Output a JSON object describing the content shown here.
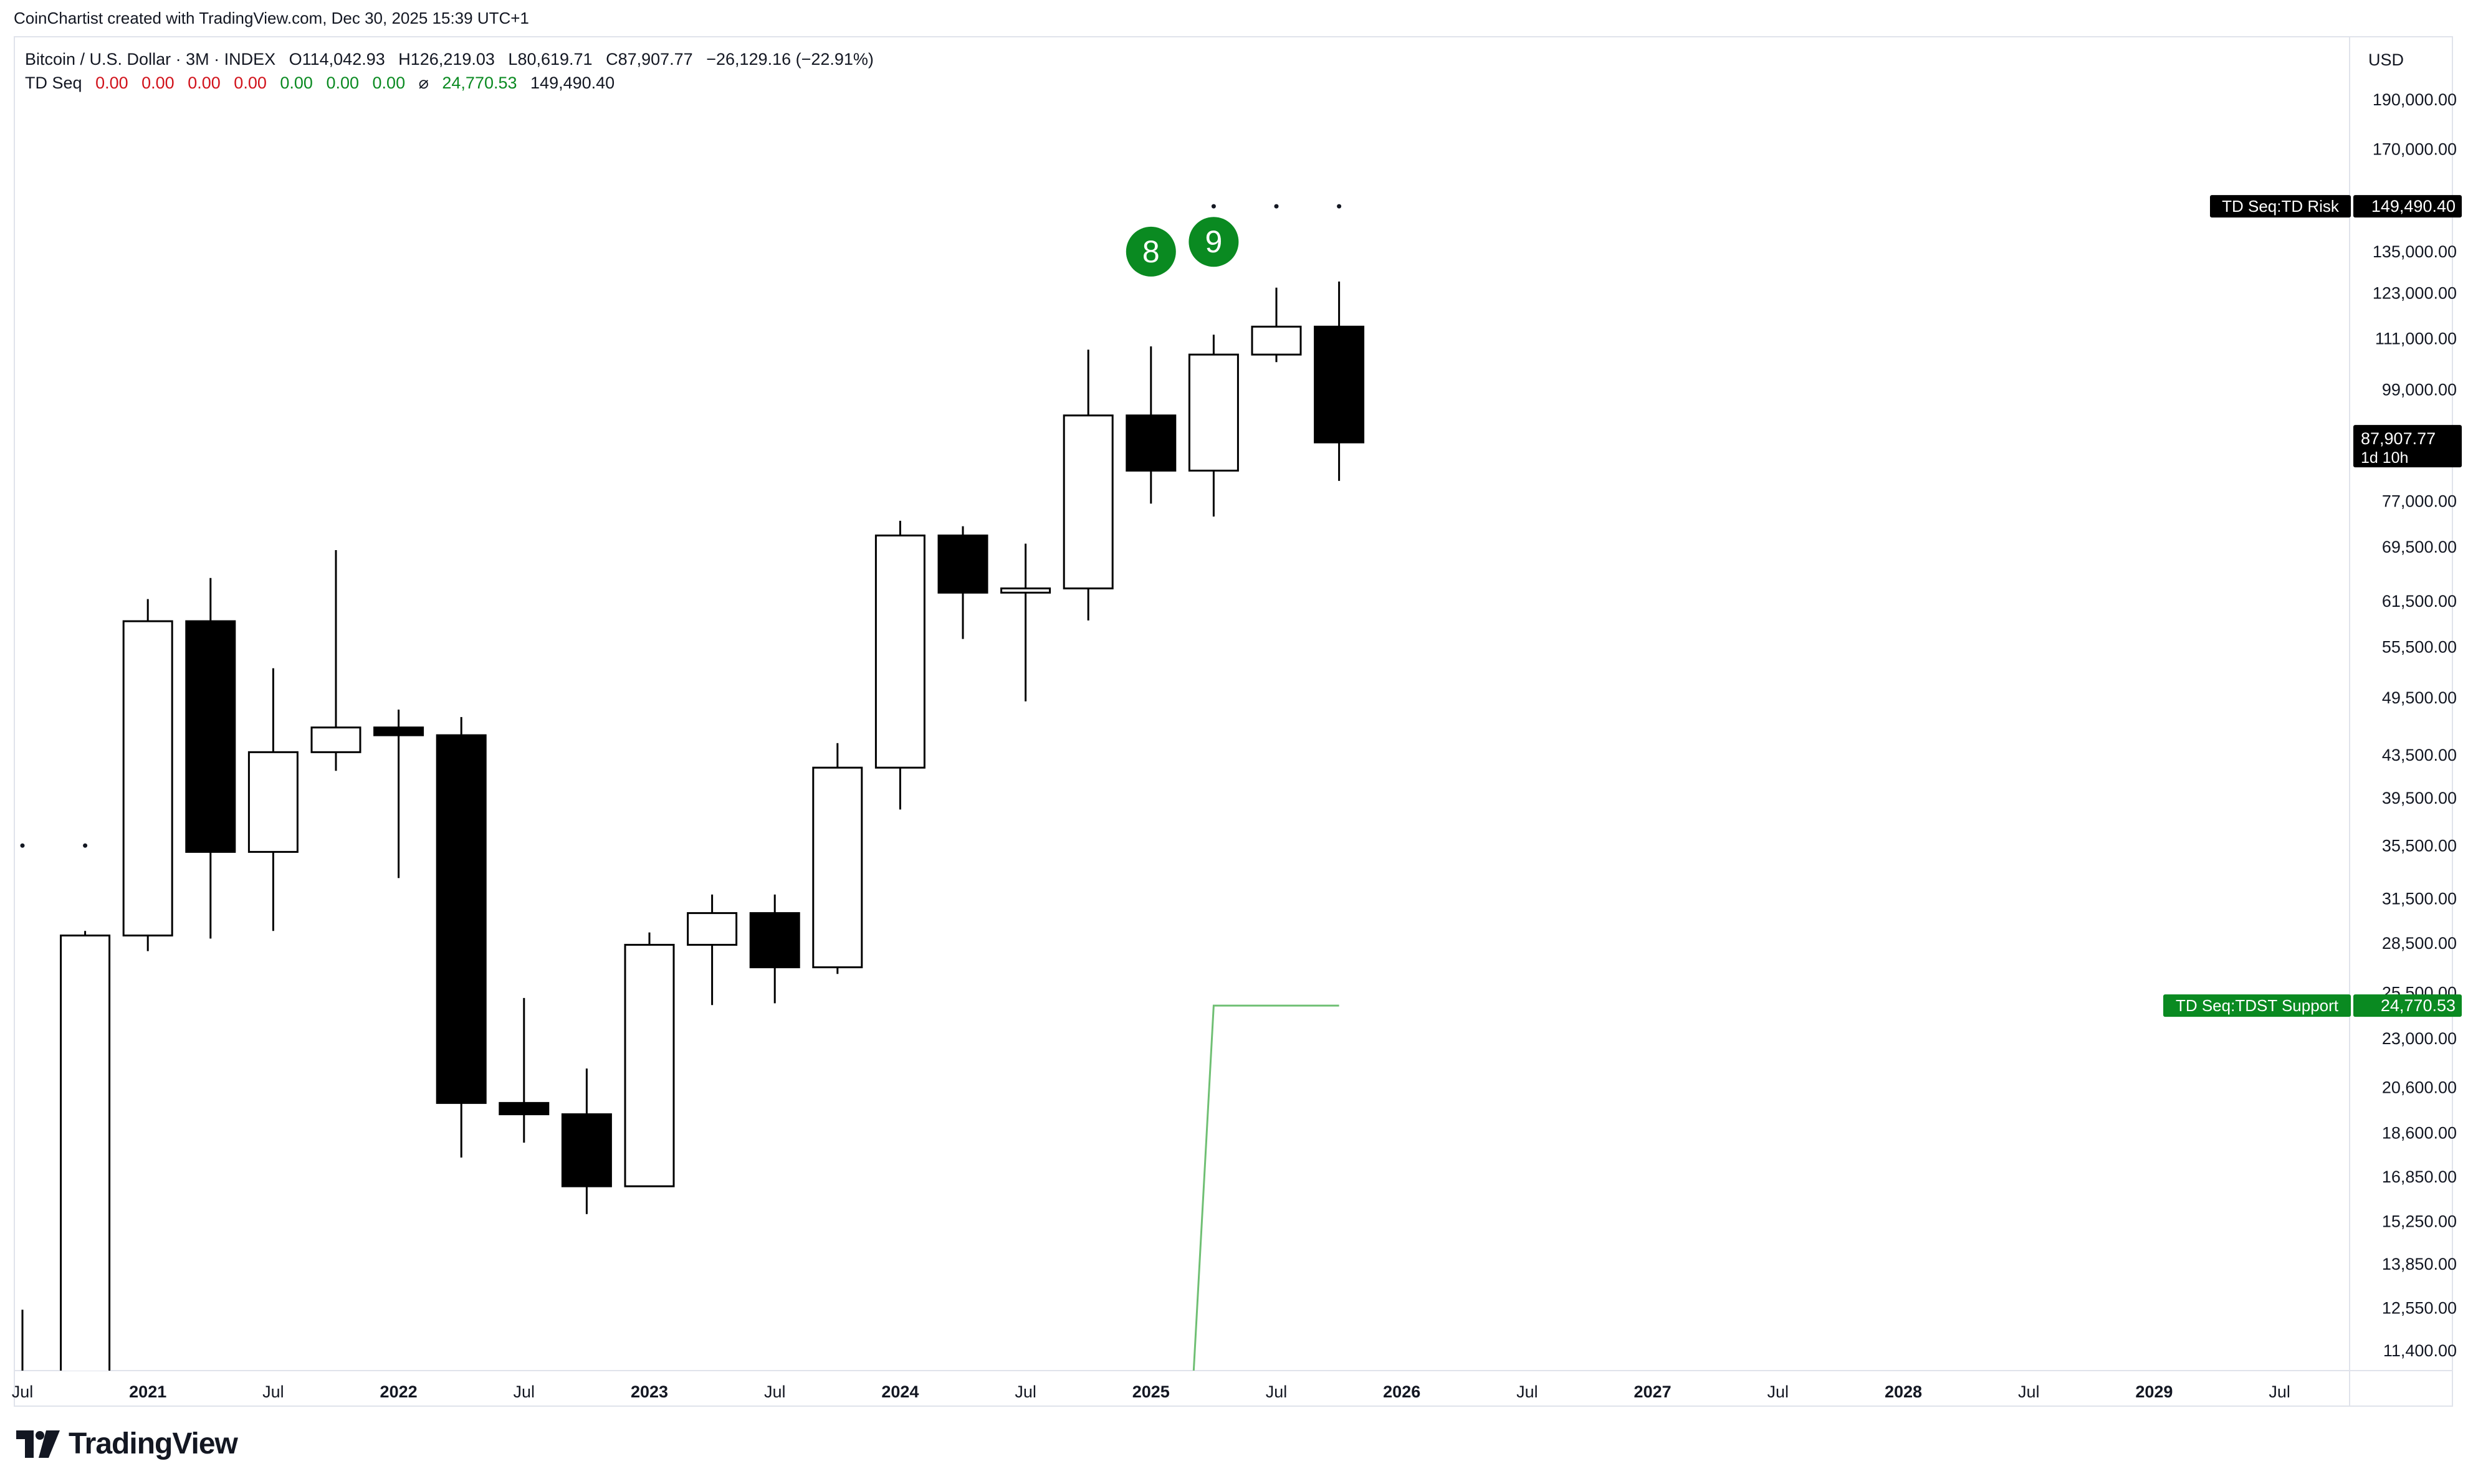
{
  "credit": "CoinChartist created with TradingView.com, Dec 30, 2025 15:39 UTC+1",
  "legend": {
    "symbol": "Bitcoin / U.S. Dollar · 3M · INDEX",
    "open": "O114,042.93",
    "high": "H126,219.03",
    "low": "L80,619.71",
    "close": "C87,907.77",
    "change": "−26,129.16 (−22.91%)",
    "indicator": "TD Seq",
    "ind_values_red": [
      "0.00",
      "0.00",
      "0.00",
      "0.00"
    ],
    "ind_values_green": [
      "0.00",
      "0.00",
      "0.00"
    ],
    "ind_symbol": "⌀",
    "ind_support": "24,770.53",
    "ind_risk": "149,490.40"
  },
  "brand": "TradingView",
  "chart_data": {
    "type": "candlestick",
    "scale": "log",
    "currency": "USD",
    "y_ticks": [
      190000,
      170000,
      135000,
      123000,
      111000,
      99000,
      77000,
      69500,
      61500,
      55500,
      49500,
      43500,
      39500,
      35500,
      31500,
      28500,
      25500,
      23000,
      20600,
      18600,
      16850,
      15250,
      13850,
      12550,
      11400
    ],
    "y_tick_labels": [
      "190,000.00",
      "170,000.00",
      "135,000.00",
      "123,000.00",
      "111,000.00",
      "99,000.00",
      "77,000.00",
      "69,500.00",
      "61,500.00",
      "55,500.00",
      "49,500.00",
      "43,500.00",
      "39,500.00",
      "35,500.00",
      "31,500.00",
      "28,500.00",
      "25,500.00",
      "23,000.00",
      "20,600.00",
      "18,600.00",
      "16,850.00",
      "15,250.00",
      "13,850.00",
      "12,550.00",
      "11,400.00"
    ],
    "x_ticks": [
      {
        "label": "Jul",
        "date": "2020-07",
        "bold": false
      },
      {
        "label": "2021",
        "date": "2021-01",
        "bold": true
      },
      {
        "label": "Jul",
        "date": "2021-07",
        "bold": false
      },
      {
        "label": "2022",
        "date": "2022-01",
        "bold": true
      },
      {
        "label": "Jul",
        "date": "2022-07",
        "bold": false
      },
      {
        "label": "2023",
        "date": "2023-01",
        "bold": true
      },
      {
        "label": "Jul",
        "date": "2023-07",
        "bold": false
      },
      {
        "label": "2024",
        "date": "2024-01",
        "bold": true
      },
      {
        "label": "Jul",
        "date": "2024-07",
        "bold": false
      },
      {
        "label": "2025",
        "date": "2025-01",
        "bold": true
      },
      {
        "label": "Jul",
        "date": "2025-07",
        "bold": false
      },
      {
        "label": "2026",
        "date": "2026-01",
        "bold": true
      },
      {
        "label": "Jul",
        "date": "2026-07",
        "bold": false
      },
      {
        "label": "2027",
        "date": "2027-01",
        "bold": true
      },
      {
        "label": "Jul",
        "date": "2027-07",
        "bold": false
      },
      {
        "label": "2028",
        "date": "2028-01",
        "bold": true
      },
      {
        "label": "Jul",
        "date": "2028-07",
        "bold": false
      },
      {
        "label": "2029",
        "date": "2029-01",
        "bold": true
      },
      {
        "label": "Jul",
        "date": "2029-07",
        "bold": false
      }
    ],
    "candles": [
      {
        "date": "2020-07",
        "open": 9000,
        "high": 12500,
        "low": 8900,
        "close": 10800
      },
      {
        "date": "2020-10",
        "open": 10800,
        "high": 29300,
        "low": 10500,
        "close": 29000
      },
      {
        "date": "2021-01",
        "open": 29000,
        "high": 61800,
        "low": 28000,
        "close": 58800
      },
      {
        "date": "2021-04",
        "open": 58800,
        "high": 64800,
        "low": 28800,
        "close": 35000
      },
      {
        "date": "2021-07",
        "open": 35000,
        "high": 52900,
        "low": 29300,
        "close": 43800
      },
      {
        "date": "2021-10",
        "open": 43800,
        "high": 69000,
        "low": 42000,
        "close": 46300
      },
      {
        "date": "2022-01",
        "open": 46300,
        "high": 48200,
        "low": 33000,
        "close": 45500
      },
      {
        "date": "2022-04",
        "open": 45500,
        "high": 47400,
        "low": 17600,
        "close": 19900
      },
      {
        "date": "2022-07",
        "open": 19900,
        "high": 25200,
        "low": 18200,
        "close": 19400
      },
      {
        "date": "2022-10",
        "open": 19400,
        "high": 21500,
        "low": 15500,
        "close": 16500
      },
      {
        "date": "2023-01",
        "open": 16500,
        "high": 29200,
        "low": 16500,
        "close": 28400
      },
      {
        "date": "2023-04",
        "open": 28400,
        "high": 31800,
        "low": 24800,
        "close": 30500
      },
      {
        "date": "2023-07",
        "open": 30500,
        "high": 31800,
        "low": 24900,
        "close": 27000
      },
      {
        "date": "2023-10",
        "open": 27000,
        "high": 44700,
        "low": 26600,
        "close": 42300
      },
      {
        "date": "2024-01",
        "open": 42300,
        "high": 73700,
        "low": 38500,
        "close": 71300
      },
      {
        "date": "2024-04",
        "open": 71300,
        "high": 72800,
        "low": 56500,
        "close": 62700
      },
      {
        "date": "2024-07",
        "open": 62700,
        "high": 70000,
        "low": 49100,
        "close": 63300
      },
      {
        "date": "2024-10",
        "open": 63300,
        "high": 108300,
        "low": 58900,
        "close": 93400
      },
      {
        "date": "2025-01",
        "open": 93400,
        "high": 109100,
        "low": 76600,
        "close": 82500
      },
      {
        "date": "2025-04",
        "open": 82500,
        "high": 112000,
        "low": 74400,
        "close": 107100
      },
      {
        "date": "2025-07",
        "open": 107100,
        "high": 124500,
        "low": 105300,
        "close": 114043
      },
      {
        "date": "2025-10",
        "open": 114043,
        "high": 126219,
        "low": 80620,
        "close": 87908
      }
    ],
    "td_labels": [
      {
        "date": "2025-01",
        "text": "8",
        "y_above": 135000
      },
      {
        "date": "2025-04",
        "text": "9",
        "y_above": 138000
      }
    ],
    "td_risk_dots": [
      {
        "date": "2025-04",
        "value": 149490
      },
      {
        "date": "2025-07",
        "value": 149490
      },
      {
        "date": "2025-10",
        "value": 149490
      }
    ],
    "other_dots": [
      {
        "date": "2020-07",
        "value": 35500
      },
      {
        "date": "2020-10",
        "value": 35500
      }
    ],
    "tdst_support_line": [
      {
        "date": "2025-03",
        "value": 10500
      },
      {
        "date": "2025-04",
        "value": 24770.53
      },
      {
        "date": "2025-10",
        "value": 24770.53
      }
    ],
    "price_badges": [
      {
        "label": "TD Seq:TD Risk",
        "value": "149,490.40",
        "y": 149490.4,
        "color": "#000000"
      },
      {
        "label": "TD Seq:TDST Support",
        "value": "24,770.53",
        "y": 24770.53,
        "color": "#0a8a21"
      }
    ],
    "last_price": {
      "value": "87,907.77",
      "countdown": "1d 10h",
      "y": 87907.77
    }
  }
}
